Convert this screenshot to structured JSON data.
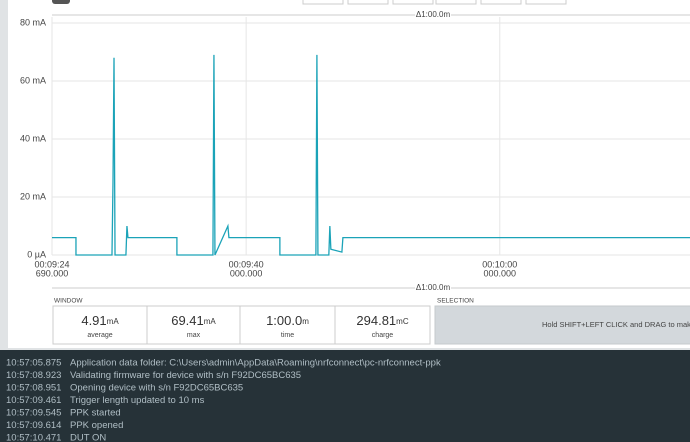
{
  "chart_data": {
    "type": "line",
    "color": "#1ba3b8",
    "grid": true,
    "x": [
      564.69,
      566.58,
      566.58,
      569.42,
      569.5,
      569.58,
      569.66,
      570.52,
      570.6,
      570.68,
      574.54,
      574.54,
      577.38,
      577.46,
      577.54,
      578.56,
      578.64,
      582.66,
      582.66,
      585.5,
      585.58,
      585.66,
      586.52,
      586.6,
      586.68,
      587.55,
      587.63,
      615
    ],
    "values": [
      6,
      6,
      0,
      0,
      25,
      68,
      0,
      0,
      10,
      6,
      6,
      0,
      0,
      69,
      0,
      10,
      6,
      6,
      0,
      0,
      69,
      0,
      0,
      10,
      2,
      1,
      6,
      6
    ],
    "xlim": [
      564.69,
      615
    ],
    "xticks": [
      {
        "value": 564.69,
        "label": "00:09:24"
      },
      {
        "value": 580,
        "label": "00:09:40"
      },
      {
        "value": 600,
        "label": "00:10:00"
      }
    ],
    "xtick_sublabels": [
      "690.000",
      "000.000",
      "000.000"
    ],
    "ylim": [
      0,
      80
    ],
    "yticks": [
      {
        "value": 0,
        "label": "0 µA"
      },
      {
        "value": 20,
        "label": "20 mA"
      },
      {
        "value": 40,
        "label": "40 mA"
      },
      {
        "value": 60,
        "label": "60 mA"
      },
      {
        "value": 80,
        "label": "80 mA"
      }
    ],
    "window_span": "Δ1:00.0m"
  },
  "window": {
    "title": "WINDOW",
    "stats": [
      {
        "value": "4.91",
        "unit": "mA",
        "label": "average"
      },
      {
        "value": "69.41",
        "unit": "mA",
        "label": "max"
      },
      {
        "value": "1:00.0",
        "unit": "m",
        "label": "time"
      },
      {
        "value": "294.81",
        "unit": "mC",
        "label": "charge"
      }
    ]
  },
  "selection": {
    "title": "SELECTION",
    "hint": "Hold SHIFT+LEFT CLICK and DRAG to make a sele"
  },
  "log": [
    {
      "time": "10:57:05.875",
      "message": "Application data folder: C:\\Users\\admin\\AppData\\Roaming\\nrfconnect\\pc-nrfconnect-ppk"
    },
    {
      "time": "10:57:08.923",
      "message": "Validating firmware for device with s/n F92DC65BC635"
    },
    {
      "time": "10:57:08.951",
      "message": "Opening device with s/n F92DC65BC635"
    },
    {
      "time": "10:57:09.461",
      "message": "Trigger length updated to 10 ms"
    },
    {
      "time": "10:57:09.545",
      "message": "PPK started"
    },
    {
      "time": "10:57:09.614",
      "message": "PPK opened"
    },
    {
      "time": "10:57:10.471",
      "message": "DUT ON"
    }
  ]
}
